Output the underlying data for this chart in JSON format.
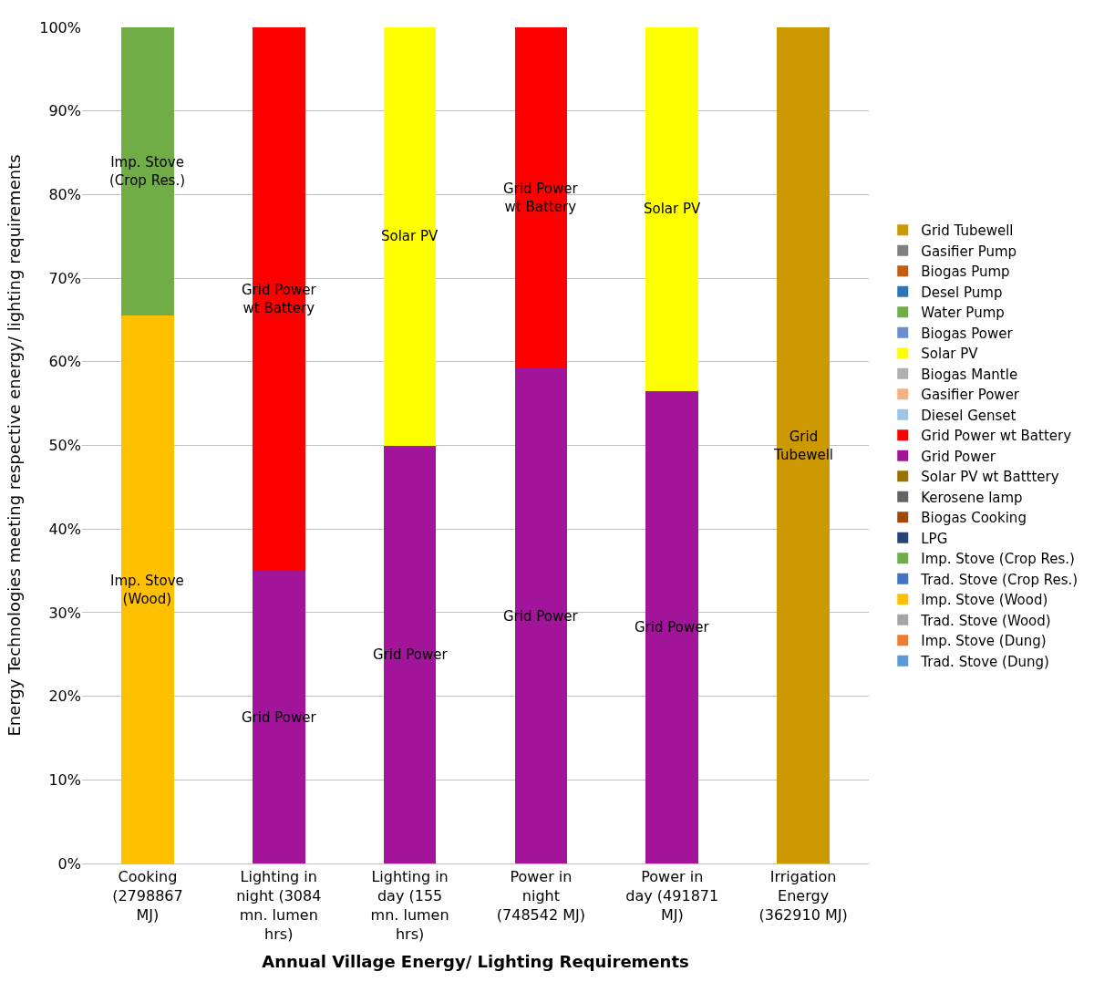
{
  "chart_data": {
    "type": "bar",
    "stacked": true,
    "xlabel": "Annual Village Energy/ Lighting Requirements",
    "ylabel": "Energy Technologies meeting respective energy/ lighting requirements",
    "categories": [
      "Cooking (2798867 MJ)",
      "Lighting in night (3084 mn. lumen hrs)",
      "Lighting in day (155 mn. lumen hrs)",
      "Power in night (748542 MJ)",
      "Power in day (491871 MJ)",
      "Irrigation Energy (362910 MJ)"
    ],
    "ylim": [
      0,
      100
    ],
    "yticks": [
      {
        "value": 0,
        "label": "0%"
      },
      {
        "value": 10,
        "label": "10%"
      },
      {
        "value": 20,
        "label": "20%"
      },
      {
        "value": 30,
        "label": "30%"
      },
      {
        "value": 40,
        "label": "40%"
      },
      {
        "value": 50,
        "label": "50%"
      },
      {
        "value": 60,
        "label": "60%"
      },
      {
        "value": 70,
        "label": "70%"
      },
      {
        "value": 80,
        "label": "80%"
      },
      {
        "value": 90,
        "label": "90%"
      },
      {
        "value": 100,
        "label": "100%"
      }
    ],
    "grid": "y",
    "legend": "right",
    "series": [
      {
        "name": "Trad. Stove (Dung)",
        "color": "#5b9bd5",
        "values": [
          0,
          0,
          0,
          0,
          0,
          0
        ]
      },
      {
        "name": "Imp. Stove (Dung)",
        "color": "#ed7d31",
        "values": [
          0,
          0,
          0,
          0,
          0,
          0
        ]
      },
      {
        "name": "Trad. Stove (Wood)",
        "color": "#a5a5a5",
        "values": [
          0,
          0,
          0,
          0,
          0,
          0
        ]
      },
      {
        "name": "Imp. Stove (Wood)",
        "color": "#ffc000",
        "values": [
          65.5,
          0,
          0,
          0,
          0,
          0
        ],
        "value_labels": [
          "Imp. Stove (Wood)",
          null,
          null,
          null,
          null,
          null
        ]
      },
      {
        "name": "Trad. Stove (Crop Res.)",
        "color": "#4472c4",
        "values": [
          0,
          0,
          0,
          0,
          0,
          0
        ]
      },
      {
        "name": "Imp. Stove (Crop Res.)",
        "color": "#70ad47",
        "values": [
          34.5,
          0,
          0,
          0,
          0,
          0
        ],
        "value_labels": [
          "Imp. Stove (Crop Res.)",
          null,
          null,
          null,
          null,
          null
        ]
      },
      {
        "name": "LPG",
        "color": "#264478",
        "values": [
          0,
          0,
          0,
          0,
          0,
          0
        ]
      },
      {
        "name": "Biogas Cooking",
        "color": "#9e480e",
        "values": [
          0,
          0,
          0,
          0,
          0,
          0
        ]
      },
      {
        "name": "Kerosene lamp",
        "color": "#636363",
        "values": [
          0,
          0,
          0,
          0,
          0,
          0
        ]
      },
      {
        "name": "Solar PV wt Batttery",
        "color": "#997300",
        "values": [
          0,
          0,
          0,
          0,
          0,
          0
        ]
      },
      {
        "name": "Grid Power",
        "color": "#a2149a",
        "values": [
          0,
          35,
          50,
          59.2,
          56.5,
          0
        ],
        "value_labels": [
          null,
          "Grid Power",
          "Grid Power",
          "Grid Power",
          "Grid Power",
          null
        ]
      },
      {
        "name": "Grid Power wt Battery",
        "color": "#ff0000",
        "values": [
          0,
          65,
          0,
          40.8,
          0,
          0
        ],
        "value_labels": [
          null,
          "Grid Power wt Battery",
          null,
          "Grid Power wt Battery",
          null,
          null
        ]
      },
      {
        "name": "Diesel Genset",
        "color": "#9dc3e6",
        "values": [
          0,
          0,
          0,
          0,
          0,
          0
        ]
      },
      {
        "name": "Gasifier Power",
        "color": "#f4b183",
        "values": [
          0,
          0,
          0,
          0,
          0,
          0
        ]
      },
      {
        "name": "Biogas Mantle",
        "color": "#b0b0b0",
        "values": [
          0,
          0,
          0,
          0,
          0,
          0
        ]
      },
      {
        "name": "Solar PV",
        "color": "#ffff00",
        "values": [
          0,
          0,
          50,
          0,
          43.5,
          0
        ],
        "value_labels": [
          null,
          null,
          "Solar PV",
          null,
          "Solar PV",
          null
        ]
      },
      {
        "name": "Biogas Power",
        "color": "#698ed0",
        "values": [
          0,
          0,
          0,
          0,
          0,
          0
        ]
      },
      {
        "name": "Water Pump",
        "color": "#70ad47",
        "values": [
          0,
          0,
          0,
          0,
          0,
          0
        ]
      },
      {
        "name": "Desel Pump",
        "color": "#2e75b6",
        "values": [
          0,
          0,
          0,
          0,
          0,
          0
        ]
      },
      {
        "name": "Biogas Pump",
        "color": "#c55a11",
        "values": [
          0,
          0,
          0,
          0,
          0,
          0
        ]
      },
      {
        "name": "Gasifier Pump",
        "color": "#808080",
        "values": [
          0,
          0,
          0,
          0,
          0,
          0
        ]
      },
      {
        "name": "Grid Tubewell",
        "color": "#cc9900",
        "values": [
          0,
          0,
          0,
          0,
          0,
          100
        ],
        "value_labels": [
          null,
          null,
          null,
          null,
          null,
          "Grid Tubewell"
        ]
      }
    ]
  }
}
